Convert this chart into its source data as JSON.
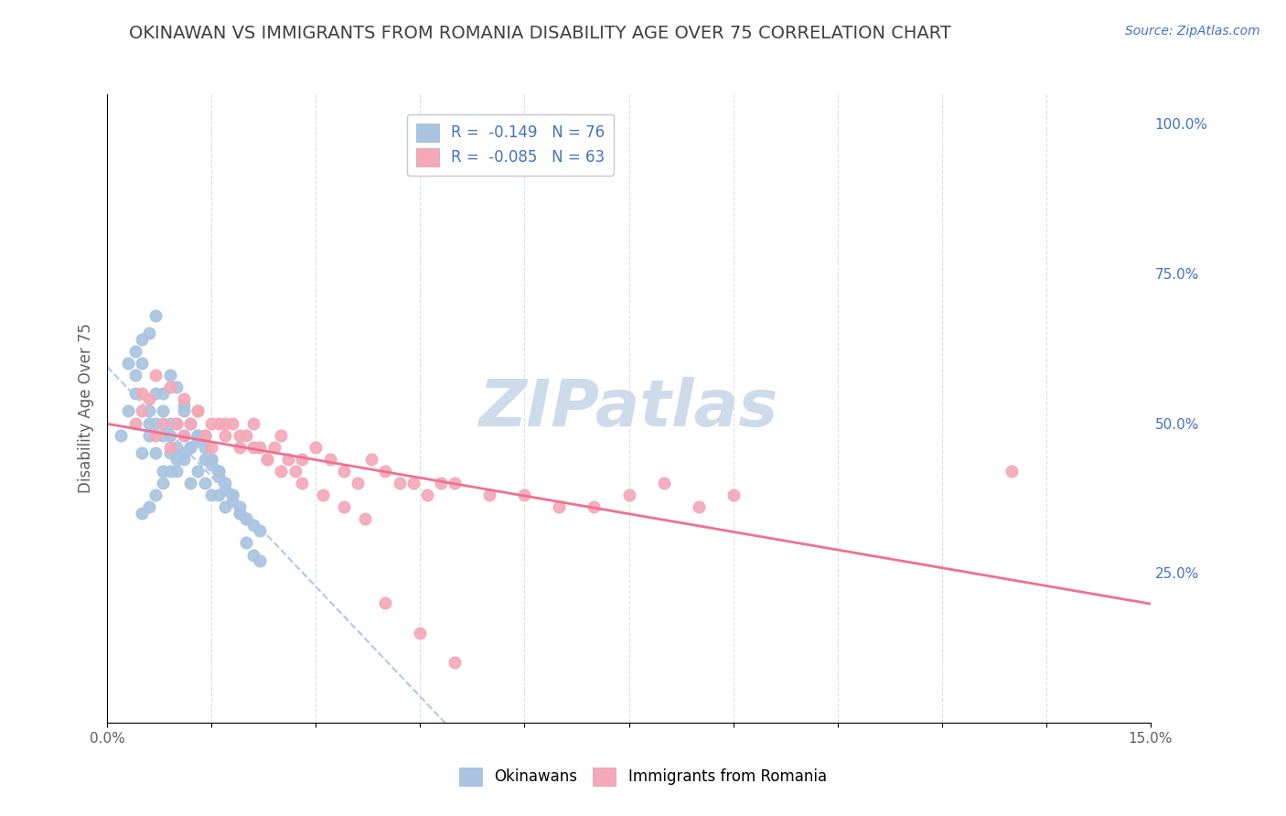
{
  "title": "OKINAWAN VS IMMIGRANTS FROM ROMANIA DISABILITY AGE OVER 75 CORRELATION CHART",
  "source_text": "Source: ZipAtlas.com",
  "ylabel": "Disability Age Over 75",
  "xlim": [
    0.0,
    0.15
  ],
  "ylim": [
    0.0,
    1.05
  ],
  "xticks": [
    0.0,
    0.015,
    0.03,
    0.045,
    0.06,
    0.075,
    0.09,
    0.105,
    0.12,
    0.135,
    0.15
  ],
  "xticklabels": [
    "0.0%",
    "",
    "",
    "",
    "",
    "",
    "",
    "",
    "",
    "",
    "15.0%"
  ],
  "yticks_right": [
    0.25,
    0.5,
    0.75,
    1.0
  ],
  "ytick_right_labels": [
    "25.0%",
    "50.0%",
    "75.0%",
    "100.0%"
  ],
  "legend_r1": "R =  -0.149   N = 76",
  "legend_r2": "R =  -0.085   N = 63",
  "okinawan_color": "#a8c4e0",
  "romania_color": "#f4a8b8",
  "okinawan_line_color": "#b0c8e4",
  "romania_line_color": "#f07090",
  "watermark": "ZIPatlas",
  "watermark_color": "#c8d8e8",
  "title_color": "#404040",
  "title_fontsize": 14,
  "legend_text_color": "#4472c4",
  "grid_color": "#d0d8e8",
  "okinawan_scatter_x": [
    0.002,
    0.003,
    0.004,
    0.004,
    0.005,
    0.005,
    0.006,
    0.006,
    0.006,
    0.007,
    0.007,
    0.007,
    0.008,
    0.008,
    0.008,
    0.009,
    0.009,
    0.009,
    0.01,
    0.01,
    0.01,
    0.011,
    0.011,
    0.011,
    0.012,
    0.012,
    0.013,
    0.013,
    0.014,
    0.014,
    0.015,
    0.015,
    0.016,
    0.016,
    0.017,
    0.018,
    0.019,
    0.02,
    0.021,
    0.022,
    0.003,
    0.004,
    0.005,
    0.006,
    0.007,
    0.008,
    0.009,
    0.01,
    0.011,
    0.012,
    0.013,
    0.014,
    0.015,
    0.016,
    0.017,
    0.018,
    0.019,
    0.02,
    0.005,
    0.006,
    0.007,
    0.008,
    0.009,
    0.01,
    0.011,
    0.012,
    0.013,
    0.014,
    0.015,
    0.016,
    0.017,
    0.018,
    0.019,
    0.02,
    0.021,
    0.022
  ],
  "okinawan_scatter_y": [
    0.48,
    0.52,
    0.55,
    0.58,
    0.6,
    0.45,
    0.5,
    0.48,
    0.52,
    0.45,
    0.5,
    0.55,
    0.42,
    0.48,
    0.52,
    0.45,
    0.5,
    0.48,
    0.42,
    0.46,
    0.5,
    0.44,
    0.48,
    0.52,
    0.4,
    0.46,
    0.42,
    0.48,
    0.4,
    0.44,
    0.38,
    0.44,
    0.38,
    0.42,
    0.36,
    0.38,
    0.35,
    0.34,
    0.33,
    0.32,
    0.6,
    0.62,
    0.64,
    0.65,
    0.68,
    0.55,
    0.58,
    0.56,
    0.53,
    0.5,
    0.48,
    0.46,
    0.44,
    0.42,
    0.4,
    0.38,
    0.36,
    0.34,
    0.35,
    0.36,
    0.38,
    0.4,
    0.42,
    0.44,
    0.45,
    0.46,
    0.47,
    0.48,
    0.43,
    0.41,
    0.39,
    0.37,
    0.35,
    0.3,
    0.28,
    0.27
  ],
  "romania_scatter_x": [
    0.004,
    0.005,
    0.006,
    0.007,
    0.008,
    0.009,
    0.01,
    0.011,
    0.012,
    0.013,
    0.014,
    0.015,
    0.016,
    0.017,
    0.018,
    0.019,
    0.02,
    0.021,
    0.022,
    0.023,
    0.024,
    0.025,
    0.026,
    0.027,
    0.028,
    0.03,
    0.032,
    0.034,
    0.036,
    0.038,
    0.04,
    0.042,
    0.044,
    0.046,
    0.048,
    0.05,
    0.055,
    0.06,
    0.065,
    0.07,
    0.075,
    0.08,
    0.085,
    0.09,
    0.005,
    0.007,
    0.009,
    0.011,
    0.013,
    0.015,
    0.017,
    0.019,
    0.021,
    0.023,
    0.025,
    0.028,
    0.031,
    0.034,
    0.037,
    0.04,
    0.045,
    0.05,
    0.13
  ],
  "romania_scatter_y": [
    0.5,
    0.52,
    0.54,
    0.48,
    0.5,
    0.46,
    0.5,
    0.48,
    0.5,
    0.52,
    0.48,
    0.46,
    0.5,
    0.48,
    0.5,
    0.46,
    0.48,
    0.5,
    0.46,
    0.44,
    0.46,
    0.48,
    0.44,
    0.42,
    0.44,
    0.46,
    0.44,
    0.42,
    0.4,
    0.44,
    0.42,
    0.4,
    0.4,
    0.38,
    0.4,
    0.4,
    0.38,
    0.38,
    0.36,
    0.36,
    0.38,
    0.4,
    0.36,
    0.38,
    0.55,
    0.58,
    0.56,
    0.54,
    0.52,
    0.5,
    0.5,
    0.48,
    0.46,
    0.44,
    0.42,
    0.4,
    0.38,
    0.36,
    0.34,
    0.2,
    0.15,
    0.1,
    0.42
  ]
}
